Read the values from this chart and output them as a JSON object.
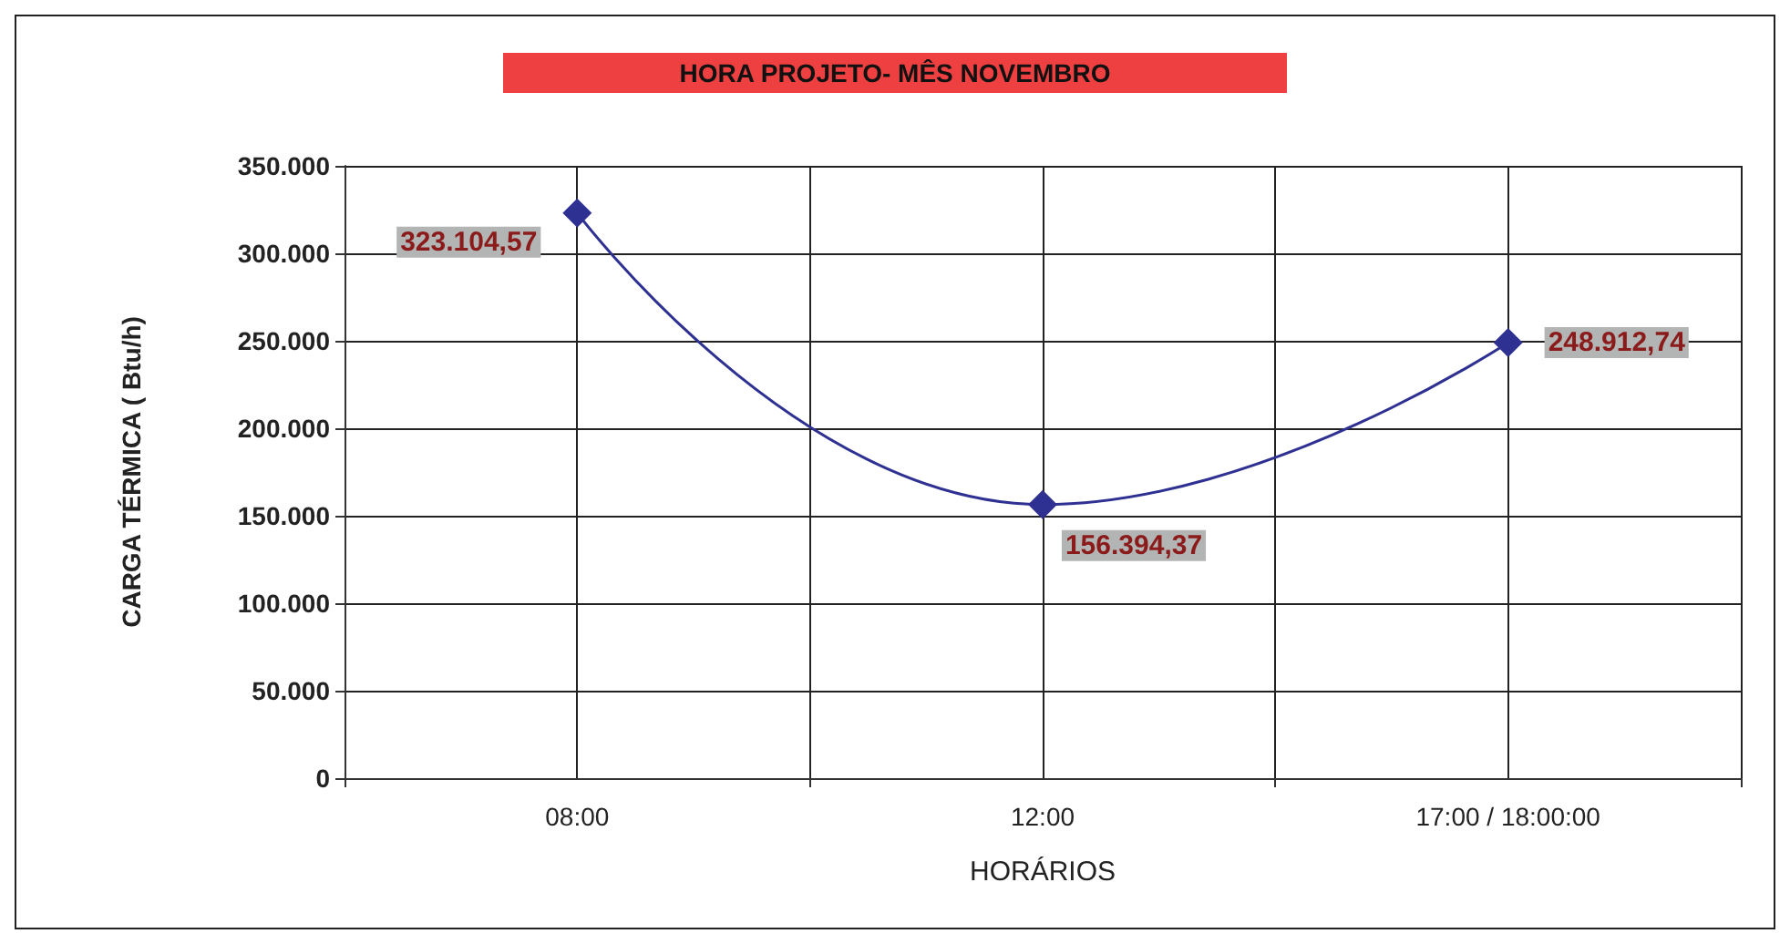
{
  "chart_data": {
    "type": "line",
    "title": "HORA PROJETO- MÊS NOVEMBRO",
    "xlabel": "HORÁRIOS",
    "ylabel": "CARGA TÉRMICA ( Btu/h)",
    "categories": [
      "08:00",
      "12:00",
      "17:00 / 18:00:00"
    ],
    "series": [
      {
        "color": "#2e3192",
        "values": [
          323104.57,
          156394.37,
          248912.74
        ],
        "value_labels": [
          "323.104,57",
          "156.394,37",
          "248.912,74"
        ]
      }
    ],
    "ylim": [
      0,
      350000
    ],
    "yticks": [
      {
        "value": 0,
        "label": "0"
      },
      {
        "value": 50000,
        "label": "50.000"
      },
      {
        "value": 100000,
        "label": "100.000"
      },
      {
        "value": 150000,
        "label": "150.000"
      },
      {
        "value": 200000,
        "label": "200.000"
      },
      {
        "value": 250000,
        "label": "250.000"
      },
      {
        "value": 300000,
        "label": "300.000"
      },
      {
        "value": 350000,
        "label": "350.000"
      }
    ],
    "grid": true,
    "marker": "diamond",
    "line_style": "solid"
  }
}
